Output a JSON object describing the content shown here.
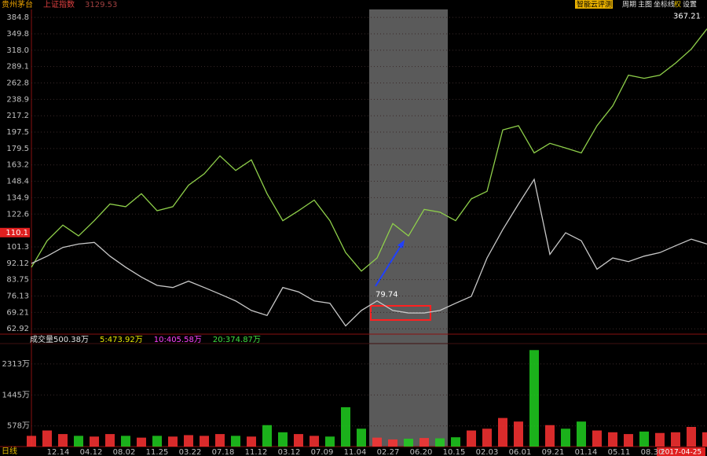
{
  "header": {
    "stock": "贵州茅台",
    "index_name": "上证指数",
    "index_value": 3129.53,
    "toolbar": [
      "智能云评测",
      "周期",
      "主图",
      "坐标线",
      "权",
      "设置"
    ]
  },
  "chart_data": [
    {
      "type": "line",
      "log_scale": true,
      "grid": true,
      "ylim": [
        61,
        403
      ],
      "yticks": [
        62.92,
        69.21,
        76.13,
        83.75,
        92.12,
        101.3,
        122.6,
        134.9,
        148.4,
        163.2,
        179.5,
        197.5,
        217.2,
        238.9,
        262.8,
        289.1,
        {
          "value": 318,
          "label": "318.0"
        },
        349.8,
        384.8
      ],
      "last_price": 110.1,
      "low_label": 79.74,
      "high_label": 367.21,
      "series": [
        {
          "color": "#8fd04a",
          "values": [
            90,
            105,
            115,
            108,
            118,
            130,
            128,
            138,
            125,
            128,
            145,
            155,
            172,
            158,
            168,
            138,
            118,
            125,
            133,
            118,
            98,
            88,
            95,
            116,
            108,
            126,
            124,
            118,
            134,
            140,
            200,
            205,
            175,
            185,
            180,
            175,
            205,
            230,
            275,
            270,
            275,
            295,
            320,
            360
          ]
        },
        {
          "color": "#c8c8c8",
          "values": [
            92,
            96,
            101,
            103,
            104,
            96,
            90,
            85,
            81,
            80,
            83,
            80,
            77,
            74,
            70,
            68,
            80,
            78,
            74,
            73,
            64,
            70,
            74,
            70,
            69,
            69,
            70,
            73,
            76,
            95,
            112,
            130,
            150,
            97,
            110,
            105,
            89,
            95,
            93,
            96,
            98,
            102,
            106,
            103
          ]
        }
      ]
    },
    {
      "type": "bar",
      "title": "成交量",
      "legend": [
        {
          "text": "500.38万",
          "color": "#e0e0e0"
        },
        {
          "text": "5:473.92万",
          "color": "#e8e800"
        },
        {
          "text": "10:405.58万",
          "color": "#ff40ff"
        },
        {
          "text": "20:374.87万",
          "color": "#40e040"
        }
      ],
      "ylim": [
        0,
        2860
      ],
      "yticks": [
        {
          "value": 578,
          "label": "578万"
        },
        {
          "value": 1445,
          "label": "1445万"
        },
        {
          "value": 2313,
          "label": "2313万"
        }
      ],
      "up_color": "#ff3232",
      "down_color": "#20d020",
      "values": [
        300,
        450,
        350,
        300,
        280,
        350,
        300,
        250,
        300,
        280,
        320,
        300,
        350,
        300,
        280,
        600,
        400,
        350,
        300,
        280,
        1100,
        500,
        250,
        200,
        220,
        240,
        230,
        260,
        450,
        500,
        800,
        700,
        2700,
        600,
        500,
        700,
        450,
        400,
        350,
        420,
        380,
        400,
        550,
        400
      ]
    }
  ],
  "x_axis": {
    "period": "日线",
    "labels": [
      "12.14",
      "04.12",
      "08.02",
      "11.25",
      "03.22",
      "07.18",
      "11.12",
      "03.12",
      "07.09",
      "11.04",
      "02.27",
      "06.20",
      "10.15",
      "02.03",
      "06.01",
      "09.21",
      "01.14",
      "05.11",
      "08.30"
    ],
    "last_date": "2017-04-25"
  }
}
